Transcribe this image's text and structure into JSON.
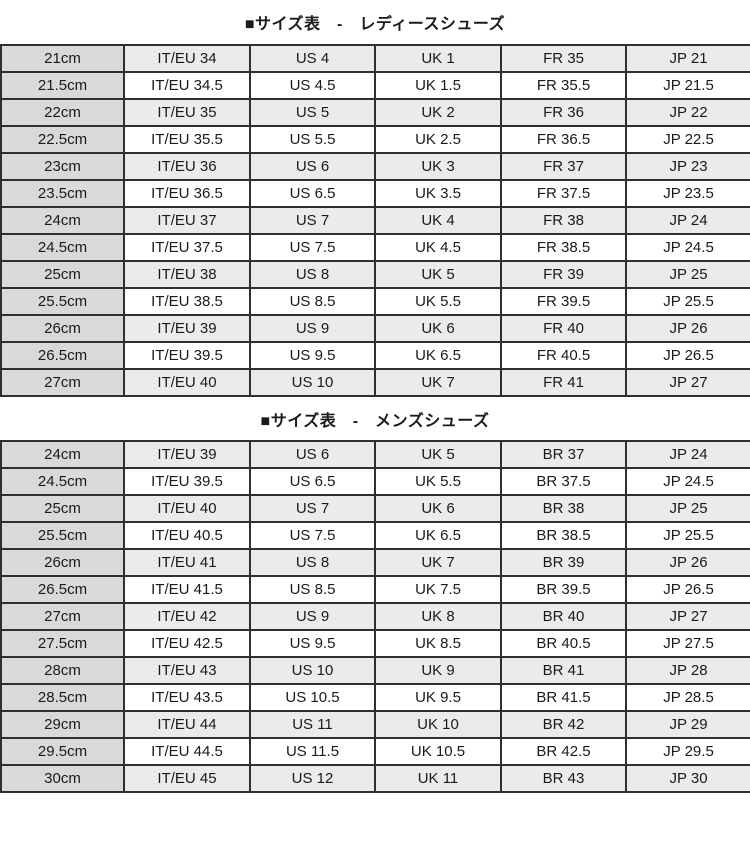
{
  "colors": {
    "first_col_bg": "#d9d9d9",
    "odd_row_bg": "#ebebeb",
    "even_row_bg": "#ffffff",
    "border": "#2f2f2f",
    "text": "#1a1a1a",
    "page_bg": "#ffffff"
  },
  "tables": [
    {
      "id": "ladies",
      "title": "■サイズ表　-　レディースシューズ",
      "columns": [
        "cm",
        "IT/EU",
        "US",
        "UK",
        "FR",
        "JP"
      ],
      "rows": [
        [
          "21cm",
          "IT/EU 34",
          "US 4",
          "UK 1",
          "FR 35",
          "JP 21"
        ],
        [
          "21.5cm",
          "IT/EU 34.5",
          "US 4.5",
          "UK 1.5",
          "FR 35.5",
          "JP 21.5"
        ],
        [
          "22cm",
          "IT/EU 35",
          "US 5",
          "UK 2",
          "FR 36",
          "JP 22"
        ],
        [
          "22.5cm",
          "IT/EU 35.5",
          "US 5.5",
          "UK 2.5",
          "FR 36.5",
          "JP 22.5"
        ],
        [
          "23cm",
          "IT/EU 36",
          "US 6",
          "UK 3",
          "FR 37",
          "JP 23"
        ],
        [
          "23.5cm",
          "IT/EU 36.5",
          "US 6.5",
          "UK 3.5",
          "FR 37.5",
          "JP 23.5"
        ],
        [
          "24cm",
          "IT/EU 37",
          "US 7",
          "UK 4",
          "FR 38",
          "JP 24"
        ],
        [
          "24.5cm",
          "IT/EU 37.5",
          "US 7.5",
          "UK 4.5",
          "FR 38.5",
          "JP 24.5"
        ],
        [
          "25cm",
          "IT/EU 38",
          "US 8",
          "UK 5",
          "FR 39",
          "JP 25"
        ],
        [
          "25.5cm",
          "IT/EU 38.5",
          "US 8.5",
          "UK 5.5",
          "FR 39.5",
          "JP 25.5"
        ],
        [
          "26cm",
          "IT/EU 39",
          "US 9",
          "UK 6",
          "FR 40",
          "JP 26"
        ],
        [
          "26.5cm",
          "IT/EU 39.5",
          "US 9.5",
          "UK 6.5",
          "FR 40.5",
          "JP 26.5"
        ],
        [
          "27cm",
          "IT/EU 40",
          "US 10",
          "UK 7",
          "FR 41",
          "JP 27"
        ]
      ]
    },
    {
      "id": "mens",
      "title": "■サイズ表　-　メンズシューズ",
      "columns": [
        "cm",
        "IT/EU",
        "US",
        "UK",
        "BR",
        "JP"
      ],
      "rows": [
        [
          "24cm",
          "IT/EU 39",
          "US 6",
          "UK 5",
          "BR 37",
          "JP 24"
        ],
        [
          "24.5cm",
          "IT/EU 39.5",
          "US 6.5",
          "UK 5.5",
          "BR 37.5",
          "JP 24.5"
        ],
        [
          "25cm",
          "IT/EU 40",
          "US 7",
          "UK 6",
          "BR 38",
          "JP 25"
        ],
        [
          "25.5cm",
          "IT/EU 40.5",
          "US 7.5",
          "UK 6.5",
          "BR 38.5",
          "JP 25.5"
        ],
        [
          "26cm",
          "IT/EU 41",
          "US 8",
          "UK 7",
          "BR 39",
          "JP 26"
        ],
        [
          "26.5cm",
          "IT/EU 41.5",
          "US 8.5",
          "UK 7.5",
          "BR 39.5",
          "JP 26.5"
        ],
        [
          "27cm",
          "IT/EU 42",
          "US 9",
          "UK 8",
          "BR 40",
          "JP 27"
        ],
        [
          "27.5cm",
          "IT/EU 42.5",
          "US 9.5",
          "UK 8.5",
          "BR 40.5",
          "JP 27.5"
        ],
        [
          "28cm",
          "IT/EU 43",
          "US 10",
          "UK 9",
          "BR 41",
          "JP 28"
        ],
        [
          "28.5cm",
          "IT/EU 43.5",
          "US 10.5",
          "UK 9.5",
          "BR 41.5",
          "JP 28.5"
        ],
        [
          "29cm",
          "IT/EU 44",
          "US 11",
          "UK 10",
          "BR 42",
          "JP 29"
        ],
        [
          "29.5cm",
          "IT/EU 44.5",
          "US 11.5",
          "UK 10.5",
          "BR 42.5",
          "JP 29.5"
        ],
        [
          "30cm",
          "IT/EU 45",
          "US 12",
          "UK 11",
          "BR 43",
          "JP 30"
        ]
      ]
    }
  ]
}
